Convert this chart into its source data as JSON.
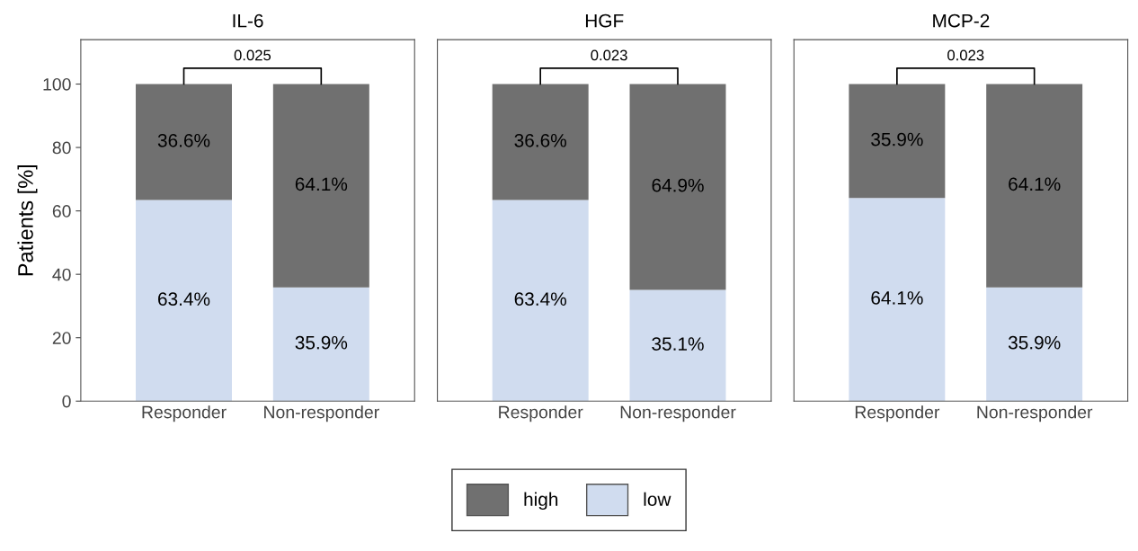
{
  "chart_data": [
    {
      "type": "bar",
      "title": "IL-6",
      "ylabel": "Patients [%]",
      "categories": [
        "Responder",
        "Non-responder"
      ],
      "stacked": true,
      "ylim": [
        0,
        114
      ],
      "yticks": [
        0,
        20,
        40,
        60,
        80,
        100
      ],
      "grid": false,
      "legend": "bottom",
      "annotations": [
        "0.025"
      ],
      "series": [
        {
          "name": "low",
          "color": "#d0dcef",
          "values": [
            63.4,
            35.9
          ],
          "value_labels": [
            "63.4%",
            "35.9%"
          ]
        },
        {
          "name": "high",
          "color": "#707070",
          "values": [
            36.6,
            64.1
          ],
          "value_labels": [
            "36.6%",
            "64.1%"
          ]
        }
      ]
    },
    {
      "type": "bar",
      "title": "HGF",
      "categories": [
        "Responder",
        "Non-responder"
      ],
      "stacked": true,
      "ylim": [
        0,
        114
      ],
      "yticks": [
        0,
        20,
        40,
        60,
        80,
        100
      ],
      "tick_labels": "x",
      "grid": false,
      "annotations": [
        "0.023"
      ],
      "series": [
        {
          "color": "#d0dcef",
          "values": [
            63.4,
            35.1
          ],
          "value_labels": [
            "63.4%",
            "35.1%"
          ]
        },
        {
          "color": "#707070",
          "values": [
            36.6,
            64.9
          ],
          "value_labels": [
            "36.6%",
            "64.9%"
          ]
        }
      ]
    },
    {
      "type": "bar",
      "title": "MCP-2",
      "categories": [
        "Responder",
        "Non-responder"
      ],
      "stacked": true,
      "ylim": [
        0,
        114
      ],
      "yticks": [
        0,
        20,
        40,
        60,
        80,
        100
      ],
      "tick_labels": "x",
      "grid": false,
      "annotations": [
        "0.023"
      ],
      "series": [
        {
          "color": "#d0dcef",
          "values": [
            64.1,
            35.9
          ],
          "value_labels": [
            "64.1%",
            "35.9%"
          ]
        },
        {
          "color": "#707070",
          "values": [
            35.9,
            64.1
          ],
          "value_labels": [
            "35.9%",
            "64.1%"
          ]
        }
      ]
    }
  ]
}
